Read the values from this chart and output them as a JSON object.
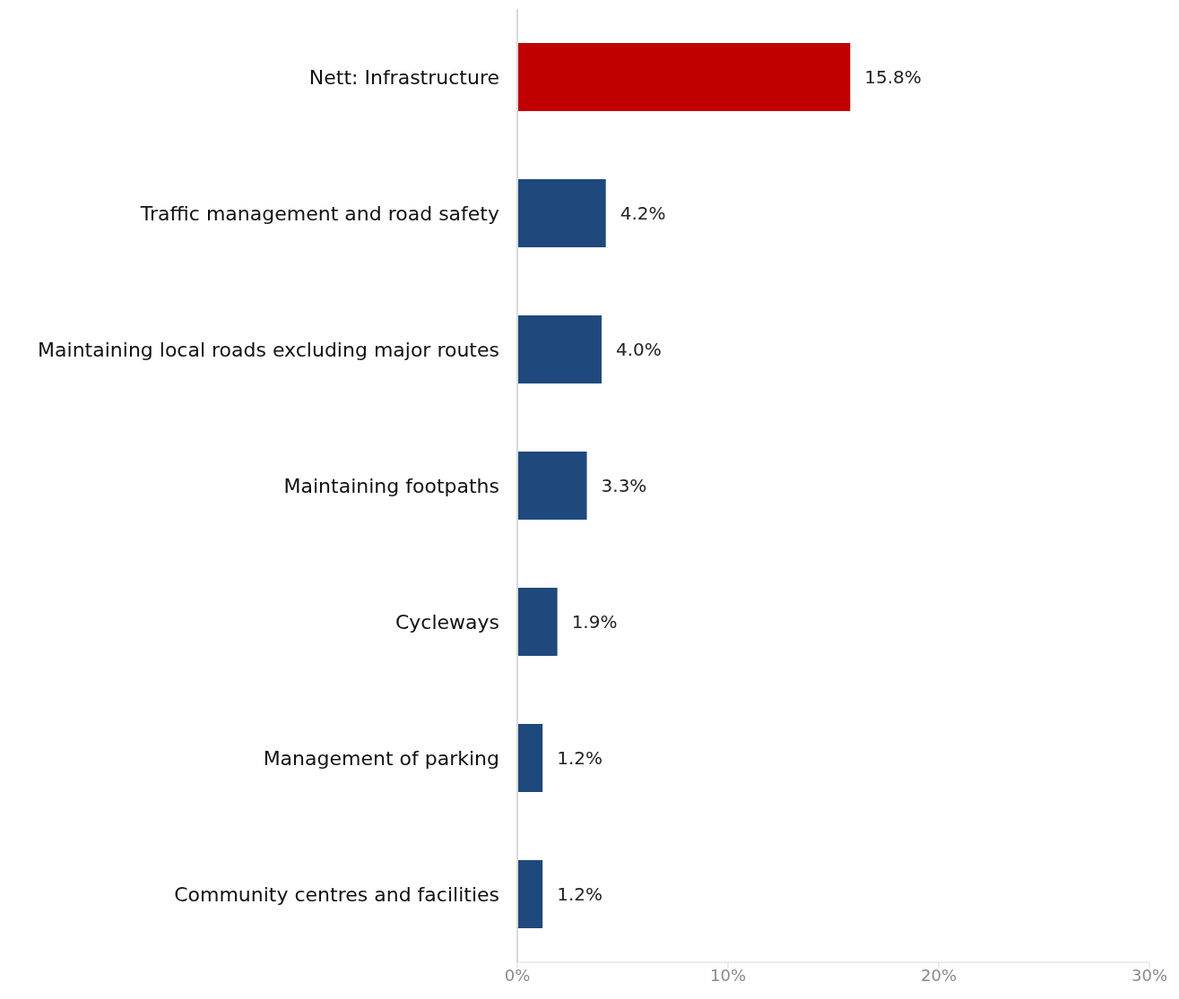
{
  "chart_data": {
    "type": "bar",
    "orientation": "horizontal",
    "categories": [
      "Nett: Infrastructure",
      "Traffic management and road safety",
      "Maintaining local roads excluding major routes",
      "Maintaining footpaths",
      "Cycleways",
      "Management of parking",
      "Community centres and facilities"
    ],
    "values": [
      15.8,
      4.2,
      4.0,
      3.3,
      1.9,
      1.2,
      1.2
    ],
    "value_labels": [
      "15.8%",
      "4.2%",
      "4.0%",
      "3.3%",
      "1.9%",
      "1.2%",
      "1.2%"
    ],
    "colors": [
      "#c00000",
      "#1f497d",
      "#1f497d",
      "#1f497d",
      "#1f497d",
      "#1f497d",
      "#1f497d"
    ],
    "xlim": [
      0,
      30
    ],
    "xticks": [
      {
        "value": 0,
        "label": "0%"
      },
      {
        "value": 10,
        "label": "10%"
      },
      {
        "value": 20,
        "label": "20%"
      },
      {
        "value": 30,
        "label": "30%"
      }
    ],
    "grid": false,
    "legend": false
  }
}
